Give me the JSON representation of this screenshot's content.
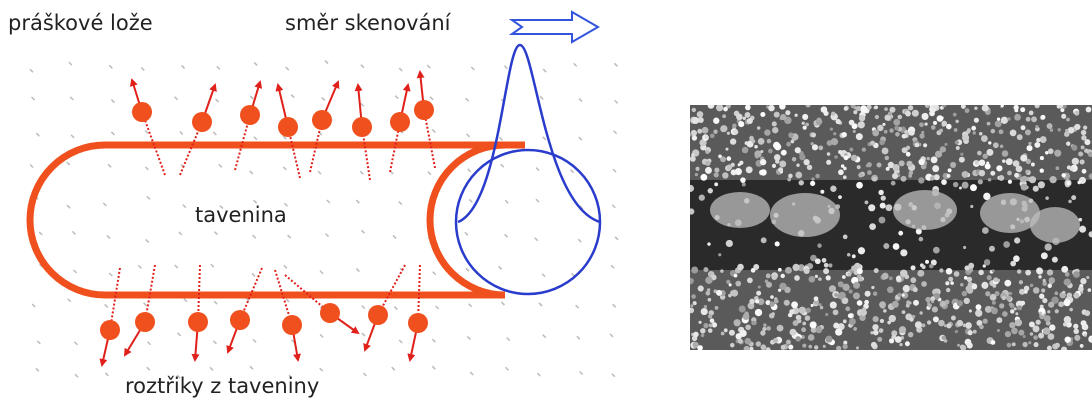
{
  "labels": {
    "powder_bed": "práškové lože",
    "scan_direction": "směr skenování",
    "melt": "tavenina",
    "spatter": "roztřiky z taveniny"
  }
}
